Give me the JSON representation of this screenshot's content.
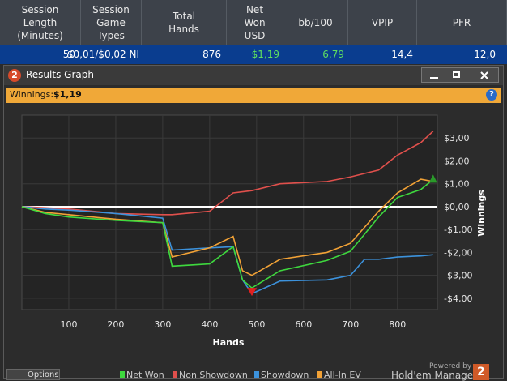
{
  "table": {
    "headers": [
      [
        "Session",
        "Length",
        "(Minutes)"
      ],
      [
        "Session",
        "Game",
        "Types"
      ],
      [
        "Total",
        "Hands"
      ],
      [
        "Net",
        "Won",
        "USD"
      ],
      [
        "bb/100"
      ],
      [
        "VPIP"
      ],
      [
        "PFR"
      ]
    ],
    "row": [
      "50",
      "$0,01/$0,02 NI",
      "876",
      "$1,19",
      "6,79",
      "14,4",
      "12,0"
    ]
  },
  "window": {
    "icon": "2",
    "title": "Results Graph",
    "summary_label": "Winnings:",
    "summary_value": "$1,19",
    "help": "?"
  },
  "chart_data": {
    "type": "line",
    "x_label": "Hands",
    "y_label": "Winnings",
    "x": [
      0,
      50,
      100,
      200,
      300,
      320,
      400,
      450,
      470,
      490,
      550,
      650,
      700,
      730,
      760,
      800,
      850,
      876
    ],
    "series": [
      {
        "name": "Net Won",
        "color": "#3ed83e",
        "values": [
          0,
          -0.3,
          -0.45,
          -0.6,
          -0.7,
          -2.6,
          -2.5,
          -1.75,
          -3.2,
          -3.55,
          -2.8,
          -2.35,
          -1.95,
          -1.2,
          -0.45,
          0.4,
          0.75,
          1.19
        ]
      },
      {
        "name": "Non Showdown",
        "color": "#e0504c",
        "values": [
          0,
          -0.05,
          -0.1,
          -0.3,
          -0.35,
          -0.35,
          -0.2,
          0.6,
          0.65,
          0.7,
          1.0,
          1.1,
          1.3,
          1.45,
          1.6,
          2.25,
          2.8,
          3.3
        ]
      },
      {
        "name": "Showdown",
        "color": "#3c92dc",
        "values": [
          0,
          -0.1,
          -0.15,
          -0.3,
          -0.5,
          -1.9,
          -1.8,
          -1.75,
          -3.2,
          -3.8,
          -3.25,
          -3.2,
          -3.0,
          -2.3,
          -2.3,
          -2.2,
          -2.15,
          -2.1
        ]
      },
      {
        "name": "All-In EV",
        "color": "#f2a236",
        "values": [
          0,
          -0.25,
          -0.35,
          -0.55,
          -0.7,
          -2.2,
          -1.8,
          -1.3,
          -2.8,
          -3.0,
          -2.3,
          -2.0,
          -1.6,
          -0.9,
          -0.2,
          0.6,
          1.2,
          1.1
        ]
      }
    ],
    "xlim": [
      0,
      885
    ],
    "ylim": [
      -4.5,
      4
    ],
    "xticks": [
      100,
      200,
      300,
      400,
      500,
      600,
      700,
      800
    ],
    "yticks": [
      {
        "value": 3,
        "label": "$3,00"
      },
      {
        "value": 2,
        "label": "$2,00"
      },
      {
        "value": 1,
        "label": "$1,00"
      },
      {
        "value": 0,
        "label": "$0,00"
      },
      {
        "value": -1,
        "label": "-$1,00"
      },
      {
        "value": -2,
        "label": "-$2,00"
      },
      {
        "value": -3,
        "label": "-$3,00"
      },
      {
        "value": -4,
        "label": "-$4,00"
      }
    ],
    "grid": true
  },
  "footer": {
    "options": "Options",
    "powered_by": "Powered by",
    "brand": "Hold'em Manager",
    "logo": "2"
  }
}
